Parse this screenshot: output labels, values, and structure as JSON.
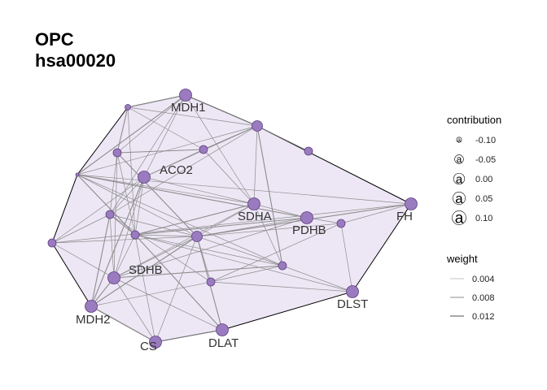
{
  "title": {
    "line1": "OPC",
    "line2": "hsa00020"
  },
  "colors": {
    "hull_fill": "#ede7f5",
    "hull_stroke": "#000000",
    "node_fill": "#9b7bbf",
    "node_stroke": "#5e3f82",
    "edge": "#8c8c8c"
  },
  "nodes": [
    {
      "id": "MDH1",
      "label": "MDH1",
      "size": "large"
    },
    {
      "id": "n_top_left",
      "label": "",
      "size": "tiny"
    },
    {
      "id": "n_top_center",
      "label": "",
      "size": "medium"
    },
    {
      "id": "n_right_top",
      "label": "",
      "size": "small"
    },
    {
      "id": "n_mid_upper",
      "label": "",
      "size": "small"
    },
    {
      "id": "n_left_upper",
      "label": "",
      "size": "small"
    },
    {
      "id": "ACO2",
      "label": "ACO2",
      "size": "large"
    },
    {
      "id": "n_far_left",
      "label": "",
      "size": "dot"
    },
    {
      "id": "SDHA",
      "label": "SDHA",
      "size": "large"
    },
    {
      "id": "PDHB",
      "label": "PDHB",
      "size": "large"
    },
    {
      "id": "FH",
      "label": "FH",
      "size": "large"
    },
    {
      "id": "n_right_mid",
      "label": "",
      "size": "small"
    },
    {
      "id": "n_left_mid",
      "label": "",
      "size": "small"
    },
    {
      "id": "n_left_center",
      "label": "",
      "size": "small"
    },
    {
      "id": "n_center",
      "label": "",
      "size": "medium"
    },
    {
      "id": "n_left_edge",
      "label": "",
      "size": "small"
    },
    {
      "id": "n_center_right",
      "label": "",
      "size": "small"
    },
    {
      "id": "SDHB",
      "label": "SDHB",
      "size": "large"
    },
    {
      "id": "n_center_low",
      "label": "",
      "size": "small"
    },
    {
      "id": "DLST",
      "label": "DLST",
      "size": "large"
    },
    {
      "id": "MDH2",
      "label": "MDH2",
      "size": "large"
    },
    {
      "id": "DLAT",
      "label": "DLAT",
      "size": "large"
    },
    {
      "id": "CS",
      "label": "CS",
      "size": "large"
    }
  ],
  "edges": [
    [
      "MDH1",
      "n_top_left"
    ],
    [
      "MDH1",
      "n_top_center"
    ],
    [
      "MDH1",
      "n_left_upper"
    ],
    [
      "MDH1",
      "ACO2"
    ],
    [
      "MDH1",
      "n_far_left"
    ],
    [
      "MDH1",
      "SDHA"
    ],
    [
      "MDH1",
      "n_left_mid"
    ],
    [
      "n_top_left",
      "n_top_center"
    ],
    [
      "n_top_left",
      "n_left_upper"
    ],
    [
      "n_top_left",
      "n_left_center"
    ],
    [
      "n_top_left",
      "n_mid_upper"
    ],
    [
      "n_top_center",
      "n_right_top"
    ],
    [
      "n_top_center",
      "n_mid_upper"
    ],
    [
      "n_top_center",
      "ACO2"
    ],
    [
      "n_top_center",
      "SDHA"
    ],
    [
      "n_top_center",
      "n_far_left"
    ],
    [
      "n_top_center",
      "n_center_right"
    ],
    [
      "n_top_center",
      "n_left_mid"
    ],
    [
      "n_mid_upper",
      "ACO2"
    ],
    [
      "n_mid_upper",
      "SDHA"
    ],
    [
      "n_mid_upper",
      "n_left_upper"
    ],
    [
      "n_left_upper",
      "n_left_mid"
    ],
    [
      "n_left_upper",
      "n_left_center"
    ],
    [
      "n_left_upper",
      "SDHB"
    ],
    [
      "n_left_upper",
      "n_center"
    ],
    [
      "ACO2",
      "n_left_mid"
    ],
    [
      "ACO2",
      "n_left_center"
    ],
    [
      "ACO2",
      "SDHB"
    ],
    [
      "ACO2",
      "MDH2"
    ],
    [
      "ACO2",
      "n_left_edge"
    ],
    [
      "ACO2",
      "SDHA"
    ],
    [
      "n_far_left",
      "SDHA"
    ],
    [
      "n_far_left",
      "n_left_center"
    ],
    [
      "n_far_left",
      "FH"
    ],
    [
      "n_far_left",
      "n_center"
    ],
    [
      "n_far_left",
      "n_center_right"
    ],
    [
      "n_far_left",
      "PDHB"
    ],
    [
      "SDHA",
      "PDHB"
    ],
    [
      "SDHA",
      "n_center"
    ],
    [
      "SDHA",
      "n_center_right"
    ],
    [
      "SDHA",
      "n_left_center"
    ],
    [
      "SDHA",
      "SDHB"
    ],
    [
      "PDHB",
      "n_right_mid"
    ],
    [
      "PDHB",
      "n_center"
    ],
    [
      "PDHB",
      "n_left_center"
    ],
    [
      "PDHB",
      "SDHB"
    ],
    [
      "FH",
      "n_right_mid"
    ],
    [
      "FH",
      "n_left_edge"
    ],
    [
      "FH",
      "n_center"
    ],
    [
      "n_right_mid",
      "DLST"
    ],
    [
      "n_right_mid",
      "n_center_low"
    ],
    [
      "n_right_mid",
      "n_center"
    ],
    [
      "n_left_mid",
      "n_left_center"
    ],
    [
      "n_left_mid",
      "SDHB"
    ],
    [
      "n_left_mid",
      "n_left_edge"
    ],
    [
      "n_left_mid",
      "n_center_low"
    ],
    [
      "n_left_mid",
      "MDH2"
    ],
    [
      "n_left_mid",
      "n_center"
    ],
    [
      "n_left_center",
      "n_center"
    ],
    [
      "n_left_center",
      "SDHB"
    ],
    [
      "n_left_center",
      "DLAT"
    ],
    [
      "n_left_center",
      "n_center_right"
    ],
    [
      "n_left_center",
      "CS"
    ],
    [
      "n_left_center",
      "DLST"
    ],
    [
      "n_center",
      "DLAT"
    ],
    [
      "n_center",
      "n_center_low"
    ],
    [
      "n_center",
      "SDHB"
    ],
    [
      "n_center",
      "CS"
    ],
    [
      "n_center",
      "MDH2"
    ],
    [
      "n_center",
      "n_center_right"
    ],
    [
      "n_center",
      "n_left_edge"
    ],
    [
      "n_center_right",
      "DLST"
    ],
    [
      "n_center_right",
      "SDHB"
    ],
    [
      "n_center_right",
      "n_center_low"
    ],
    [
      "n_center_low",
      "DLST"
    ],
    [
      "n_center_low",
      "MDH2"
    ],
    [
      "SDHB",
      "MDH2"
    ],
    [
      "SDHB",
      "CS"
    ],
    [
      "SDHB",
      "DLAT"
    ],
    [
      "SDHB",
      "n_left_edge"
    ],
    [
      "MDH2",
      "CS"
    ],
    [
      "DLAT",
      "CS"
    ]
  ],
  "legend": {
    "contribution": {
      "title": "contribution",
      "key_glyph": "a",
      "items": [
        {
          "label": "-0.10",
          "size": 7
        },
        {
          "label": "-0.05",
          "size": 12
        },
        {
          "label": "0.00",
          "size": 15
        },
        {
          "label": "0.05",
          "size": 17
        },
        {
          "label": "0.10",
          "size": 19
        }
      ]
    },
    "weight": {
      "title": "weight",
      "items": [
        {
          "label": "0.004",
          "width": 0.6
        },
        {
          "label": "0.008",
          "width": 1.0
        },
        {
          "label": "0.012",
          "width": 1.5
        }
      ]
    }
  }
}
